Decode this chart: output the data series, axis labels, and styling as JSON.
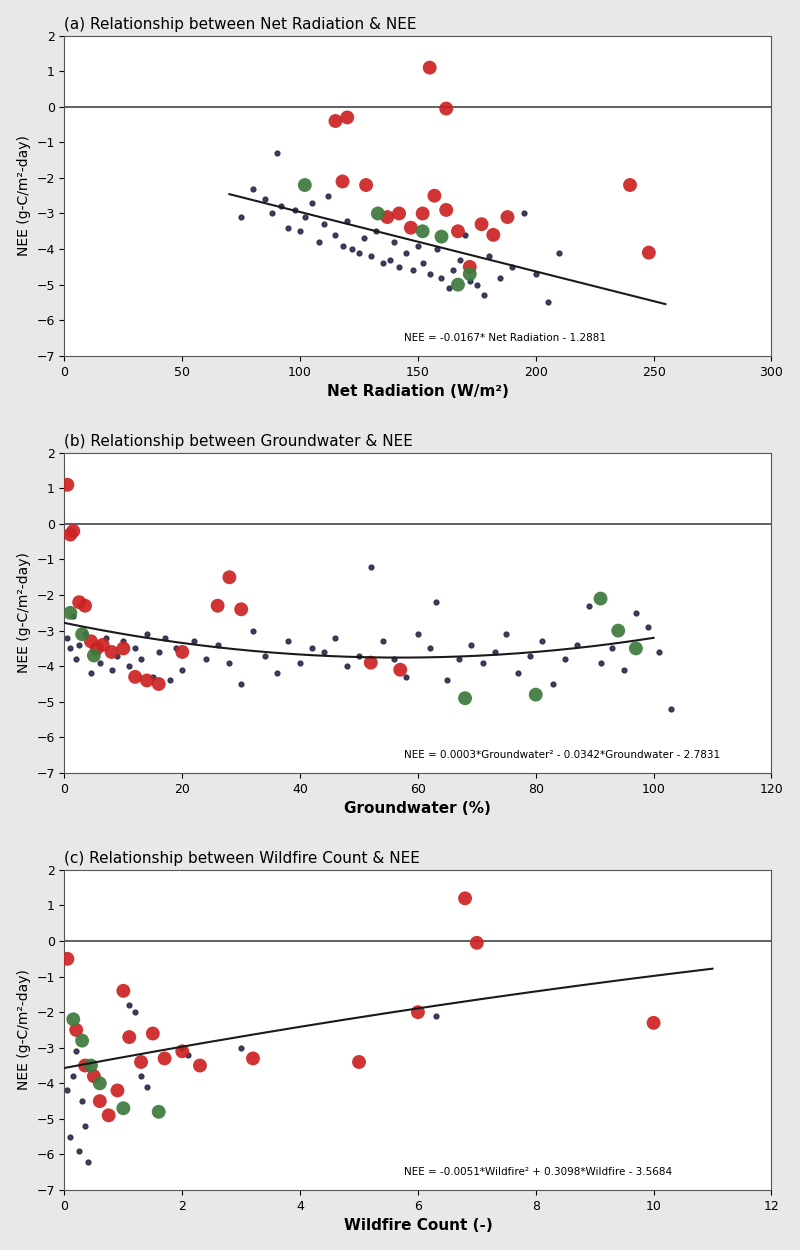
{
  "panel_a": {
    "title": "(a) Relationship between Net Radiation & NEE",
    "xlabel": "Net Radiation (W/m²)",
    "ylabel": "NEE (g-C/m²-day)",
    "xlim": [
      0,
      300
    ],
    "ylim": [
      -7,
      2
    ],
    "xticks": [
      0,
      50,
      100,
      150,
      200,
      250,
      300
    ],
    "yticks": [
      -7,
      -6,
      -5,
      -4,
      -3,
      -2,
      -1,
      0,
      1,
      2
    ],
    "equation": "NEE = -0.0167* Net Radiation - 1.2881",
    "fit_slope": -0.0167,
    "fit_intercept": -1.2881,
    "fit_xmin": 70,
    "fit_xmax": 255,
    "small_dots": [
      [
        75,
        -3.1
      ],
      [
        80,
        -2.3
      ],
      [
        85,
        -2.6
      ],
      [
        88,
        -3.0
      ],
      [
        90,
        -1.3
      ],
      [
        92,
        -2.8
      ],
      [
        95,
        -3.4
      ],
      [
        98,
        -2.9
      ],
      [
        100,
        -3.5
      ],
      [
        102,
        -3.1
      ],
      [
        105,
        -2.7
      ],
      [
        108,
        -3.8
      ],
      [
        110,
        -3.3
      ],
      [
        112,
        -2.5
      ],
      [
        115,
        -3.6
      ],
      [
        118,
        -3.9
      ],
      [
        120,
        -3.2
      ],
      [
        122,
        -4.0
      ],
      [
        125,
        -4.1
      ],
      [
        127,
        -3.7
      ],
      [
        130,
        -4.2
      ],
      [
        132,
        -3.5
      ],
      [
        135,
        -4.4
      ],
      [
        138,
        -4.3
      ],
      [
        140,
        -3.8
      ],
      [
        142,
        -4.5
      ],
      [
        145,
        -4.1
      ],
      [
        148,
        -4.6
      ],
      [
        150,
        -3.9
      ],
      [
        152,
        -4.4
      ],
      [
        155,
        -4.7
      ],
      [
        158,
        -4.0
      ],
      [
        160,
        -4.8
      ],
      [
        163,
        -5.1
      ],
      [
        165,
        -4.6
      ],
      [
        168,
        -4.3
      ],
      [
        170,
        -3.6
      ],
      [
        172,
        -4.9
      ],
      [
        175,
        -5.0
      ],
      [
        178,
        -5.3
      ],
      [
        180,
        -4.2
      ],
      [
        185,
        -4.8
      ],
      [
        190,
        -4.5
      ],
      [
        195,
        -3.0
      ],
      [
        200,
        -4.7
      ],
      [
        205,
        -5.5
      ],
      [
        210,
        -4.1
      ]
    ],
    "red_dots": [
      [
        115,
        -0.4
      ],
      [
        120,
        -0.3
      ],
      [
        155,
        1.1
      ],
      [
        162,
        -0.05
      ],
      [
        118,
        -2.1
      ],
      [
        128,
        -2.2
      ],
      [
        137,
        -3.1
      ],
      [
        142,
        -3.0
      ],
      [
        147,
        -3.4
      ],
      [
        152,
        -3.0
      ],
      [
        157,
        -2.5
      ],
      [
        162,
        -2.9
      ],
      [
        167,
        -3.5
      ],
      [
        172,
        -4.5
      ],
      [
        177,
        -3.3
      ],
      [
        182,
        -3.6
      ],
      [
        188,
        -3.1
      ],
      [
        240,
        -2.2
      ],
      [
        248,
        -4.1
      ]
    ],
    "green_dots": [
      [
        102,
        -2.2
      ],
      [
        133,
        -3.0
      ],
      [
        152,
        -3.5
      ],
      [
        160,
        -3.65
      ],
      [
        167,
        -5.0
      ],
      [
        172,
        -4.7
      ]
    ]
  },
  "panel_b": {
    "title": "(b) Relationship between Groundwater & NEE",
    "xlabel": "Groundwater (%)",
    "ylabel": "NEE (g-C/m²-day)",
    "xlim": [
      0,
      120
    ],
    "ylim": [
      -7,
      2
    ],
    "xticks": [
      0,
      20,
      40,
      60,
      80,
      100,
      120
    ],
    "yticks": [
      -7,
      -6,
      -5,
      -4,
      -3,
      -2,
      -1,
      0,
      1,
      2
    ],
    "equation": "NEE = 0.0003*Groundwater² - 0.0342*Groundwater - 2.7831",
    "a": 0.0003,
    "b": -0.0342,
    "c": -2.7831,
    "fit_xmin": 0,
    "fit_xmax": 100,
    "small_dots": [
      [
        0.5,
        -3.2
      ],
      [
        1.0,
        -3.5
      ],
      [
        1.5,
        -2.6
      ],
      [
        2.0,
        -3.8
      ],
      [
        2.5,
        -3.4
      ],
      [
        3.5,
        -3.1
      ],
      [
        4.5,
        -4.2
      ],
      [
        5.0,
        -3.6
      ],
      [
        6.0,
        -3.9
      ],
      [
        7.0,
        -3.2
      ],
      [
        8.0,
        -4.1
      ],
      [
        9.0,
        -3.7
      ],
      [
        10.0,
        -3.3
      ],
      [
        11.0,
        -4.0
      ],
      [
        12.0,
        -3.5
      ],
      [
        13.0,
        -3.8
      ],
      [
        14.0,
        -3.1
      ],
      [
        15.0,
        -4.3
      ],
      [
        16.0,
        -3.6
      ],
      [
        17.0,
        -3.2
      ],
      [
        18.0,
        -4.4
      ],
      [
        19.0,
        -3.5
      ],
      [
        20.0,
        -4.1
      ],
      [
        22.0,
        -3.3
      ],
      [
        24.0,
        -3.8
      ],
      [
        26.0,
        -3.4
      ],
      [
        28.0,
        -3.9
      ],
      [
        30.0,
        -4.5
      ],
      [
        32.0,
        -3.0
      ],
      [
        34.0,
        -3.7
      ],
      [
        36.0,
        -4.2
      ],
      [
        38.0,
        -3.3
      ],
      [
        40.0,
        -3.9
      ],
      [
        42.0,
        -3.5
      ],
      [
        44.0,
        -3.6
      ],
      [
        46.0,
        -3.2
      ],
      [
        48.0,
        -4.0
      ],
      [
        50.0,
        -3.7
      ],
      [
        52.0,
        -1.2
      ],
      [
        54.0,
        -3.3
      ],
      [
        56.0,
        -3.8
      ],
      [
        58.0,
        -4.3
      ],
      [
        60.0,
        -3.1
      ],
      [
        62.0,
        -3.5
      ],
      [
        63.0,
        -2.2
      ],
      [
        65.0,
        -4.4
      ],
      [
        67.0,
        -3.8
      ],
      [
        69.0,
        -3.4
      ],
      [
        71.0,
        -3.9
      ],
      [
        73.0,
        -3.6
      ],
      [
        75.0,
        -3.1
      ],
      [
        77.0,
        -4.2
      ],
      [
        79.0,
        -3.7
      ],
      [
        81.0,
        -3.3
      ],
      [
        83.0,
        -4.5
      ],
      [
        85.0,
        -3.8
      ],
      [
        87.0,
        -3.4
      ],
      [
        89.0,
        -2.3
      ],
      [
        91.0,
        -3.9
      ],
      [
        93.0,
        -3.5
      ],
      [
        95.0,
        -4.1
      ],
      [
        97.0,
        -2.5
      ],
      [
        99.0,
        -2.9
      ],
      [
        101.0,
        -3.6
      ],
      [
        103.0,
        -5.2
      ]
    ],
    "red_dots": [
      [
        0.5,
        1.1
      ],
      [
        1.0,
        -0.3
      ],
      [
        1.5,
        -0.2
      ],
      [
        2.5,
        -2.2
      ],
      [
        3.5,
        -2.3
      ],
      [
        4.5,
        -3.3
      ],
      [
        5.5,
        -3.5
      ],
      [
        6.5,
        -3.4
      ],
      [
        8.0,
        -3.6
      ],
      [
        10.0,
        -3.5
      ],
      [
        12.0,
        -4.3
      ],
      [
        14.0,
        -4.4
      ],
      [
        16.0,
        -4.5
      ],
      [
        20.0,
        -3.6
      ],
      [
        26.0,
        -2.3
      ],
      [
        28.0,
        -1.5
      ],
      [
        30.0,
        -2.4
      ],
      [
        52.0,
        -3.9
      ],
      [
        57.0,
        -4.1
      ]
    ],
    "green_dots": [
      [
        1.0,
        -2.5
      ],
      [
        3.0,
        -3.1
      ],
      [
        5.0,
        -3.7
      ],
      [
        68.0,
        -4.9
      ],
      [
        80.0,
        -4.8
      ],
      [
        91.0,
        -2.1
      ],
      [
        94.0,
        -3.0
      ],
      [
        97.0,
        -3.5
      ]
    ]
  },
  "panel_c": {
    "title": "(c) Relationship between Wildfire Count & NEE",
    "xlabel": "Wildfire Count (-)",
    "ylabel": "NEE (g-C/m²-day)",
    "xlim": [
      0,
      12
    ],
    "ylim": [
      -7,
      2
    ],
    "xticks": [
      0,
      2,
      4,
      6,
      8,
      10,
      12
    ],
    "yticks": [
      -7,
      -6,
      -5,
      -4,
      -3,
      -2,
      -1,
      0,
      1,
      2
    ],
    "equation": "NEE = -0.0051*Wildfire² + 0.3098*Wildfire - 3.5684",
    "a": -0.0051,
    "b": 0.3098,
    "c": -3.5684,
    "fit_xmin": 0,
    "fit_xmax": 11,
    "small_dots": [
      [
        0.05,
        -4.2
      ],
      [
        0.1,
        -5.5
      ],
      [
        0.15,
        -3.8
      ],
      [
        0.2,
        -3.1
      ],
      [
        0.25,
        -5.9
      ],
      [
        0.3,
        -4.5
      ],
      [
        0.35,
        -5.2
      ],
      [
        0.4,
        -6.2
      ],
      [
        1.1,
        -1.8
      ],
      [
        1.2,
        -2.0
      ],
      [
        1.3,
        -3.8
      ],
      [
        1.4,
        -4.1
      ],
      [
        2.0,
        -3.0
      ],
      [
        2.1,
        -3.2
      ],
      [
        3.0,
        -3.0
      ],
      [
        6.3,
        -2.1
      ]
    ],
    "red_dots": [
      [
        0.05,
        -0.5
      ],
      [
        0.2,
        -2.5
      ],
      [
        0.35,
        -3.5
      ],
      [
        0.5,
        -3.8
      ],
      [
        0.6,
        -4.5
      ],
      [
        0.75,
        -4.9
      ],
      [
        0.9,
        -4.2
      ],
      [
        1.0,
        -1.4
      ],
      [
        1.1,
        -2.7
      ],
      [
        1.3,
        -3.4
      ],
      [
        1.5,
        -2.6
      ],
      [
        1.7,
        -3.3
      ],
      [
        2.0,
        -3.1
      ],
      [
        2.3,
        -3.5
      ],
      [
        3.2,
        -3.3
      ],
      [
        5.0,
        -3.4
      ],
      [
        6.0,
        -2.0
      ],
      [
        6.8,
        1.2
      ],
      [
        7.0,
        -0.05
      ],
      [
        10.0,
        -2.3
      ]
    ],
    "green_dots": [
      [
        0.15,
        -2.2
      ],
      [
        0.3,
        -2.8
      ],
      [
        0.45,
        -3.5
      ],
      [
        0.6,
        -4.0
      ],
      [
        1.0,
        -4.7
      ],
      [
        1.6,
        -4.8
      ]
    ]
  },
  "colors": {
    "red": "#cc2222",
    "green": "#3d7a3d",
    "small": "#2a2a4a",
    "line": "#1a1a1a",
    "zero_line": "#444444",
    "bg": "#e8e8e8",
    "plot_bg": "#ffffff"
  },
  "small_dot_size": 12,
  "large_dot_size": 100
}
